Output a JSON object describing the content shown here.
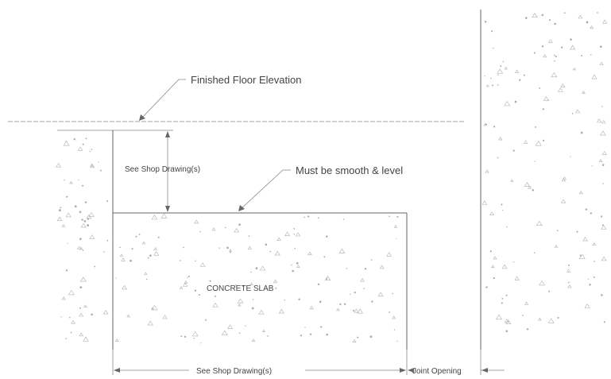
{
  "drawing": {
    "callouts": {
      "finished_floor": "Finished Floor Elevation",
      "smooth_level": "Must be smooth & level"
    },
    "labels": {
      "slab": "CONCRETE SLAB",
      "shop_vertical": "See Shop Drawing(s)",
      "shop_horizontal": "See Shop Drawing(s)",
      "joint": "Joint Opening"
    }
  }
}
